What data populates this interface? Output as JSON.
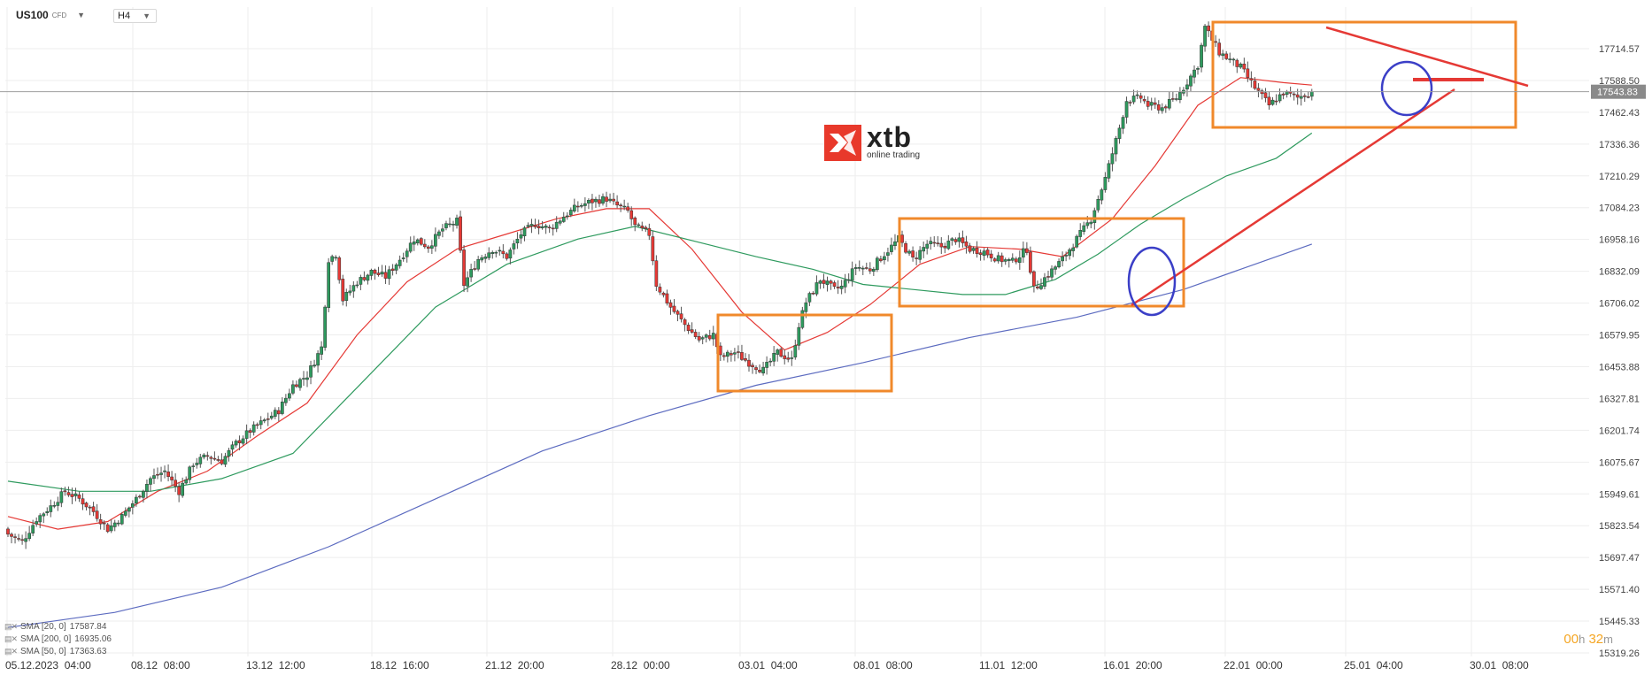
{
  "header": {
    "symbol": "US100",
    "symbol_type": "CFD",
    "timeframe": "H4"
  },
  "logo": {
    "brand": "xtb",
    "tagline": "online trading"
  },
  "countdown": {
    "hours": "00",
    "hours_unit": "h",
    "minutes": "32",
    "minutes_unit": "m"
  },
  "legend": [
    {
      "label": "SMA [20, 0]",
      "value": "17587.84",
      "color": "#e53935"
    },
    {
      "label": "SMA [200, 0]",
      "value": "16935.06",
      "color": "#5c6bc0"
    },
    {
      "label": "SMA [50, 0]",
      "value": "17363.63",
      "color": "#2e9a5e"
    }
  ],
  "chart_data": {
    "type": "candlestick",
    "symbol": "US100",
    "timeframe": "H4",
    "ylim": [
      15270,
      17900
    ],
    "x_tick_labels": [
      "05.12.2023  04:00",
      "08.12  08:00",
      "13.12  12:00",
      "18.12  16:00",
      "21.12  20:00",
      "28.12  00:00",
      "03.01  04:00",
      "08.01  08:00",
      "11.01  12:00",
      "16.01  20:00",
      "22.01  00:00",
      "25.01  04:00",
      "30.01  08:00"
    ],
    "y_tick_labels": [
      "17714.57",
      "17588.50",
      "17462.43",
      "17336.36",
      "17210.29",
      "17084.23",
      "16958.16",
      "16832.09",
      "16706.02",
      "16579.95",
      "16453.88",
      "16327.81",
      "16201.74",
      "16075.67",
      "15949.61",
      "15823.54",
      "15697.47",
      "15571.40",
      "15445.33",
      "15319.26"
    ],
    "current_price": {
      "label": "17543.83",
      "value": 17543.83
    },
    "close_path": [
      [
        0,
        15790
      ],
      [
        4,
        15760
      ],
      [
        8,
        15850
      ],
      [
        12,
        15900
      ],
      [
        16,
        15960
      ],
      [
        20,
        15930
      ],
      [
        24,
        15880
      ],
      [
        28,
        15810
      ],
      [
        32,
        15860
      ],
      [
        36,
        15930
      ],
      [
        40,
        16010
      ],
      [
        44,
        16040
      ],
      [
        48,
        15960
      ],
      [
        52,
        16070
      ],
      [
        56,
        16100
      ],
      [
        60,
        16080
      ],
      [
        64,
        16150
      ],
      [
        68,
        16200
      ],
      [
        72,
        16240
      ],
      [
        76,
        16280
      ],
      [
        80,
        16380
      ],
      [
        84,
        16420
      ],
      [
        88,
        16530
      ],
      [
        90,
        16880
      ],
      [
        92,
        16900
      ],
      [
        94,
        16720
      ],
      [
        98,
        16790
      ],
      [
        102,
        16830
      ],
      [
        106,
        16810
      ],
      [
        110,
        16880
      ],
      [
        114,
        16960
      ],
      [
        118,
        16930
      ],
      [
        122,
        17000
      ],
      [
        126,
        17030
      ],
      [
        128,
        16780
      ],
      [
        132,
        16880
      ],
      [
        136,
        16920
      ],
      [
        140,
        16890
      ],
      [
        144,
        16980
      ],
      [
        148,
        17020
      ],
      [
        152,
        17000
      ],
      [
        156,
        17050
      ],
      [
        160,
        17090
      ],
      [
        164,
        17110
      ],
      [
        168,
        17120
      ],
      [
        170,
        17100
      ],
      [
        174,
        17070
      ],
      [
        176,
        17010
      ],
      [
        180,
        16980
      ],
      [
        182,
        16780
      ],
      [
        186,
        16690
      ],
      [
        190,
        16620
      ],
      [
        194,
        16560
      ],
      [
        198,
        16580
      ],
      [
        200,
        16490
      ],
      [
        204,
        16510
      ],
      [
        208,
        16470
      ],
      [
        212,
        16440
      ],
      [
        216,
        16510
      ],
      [
        220,
        16480
      ],
      [
        222,
        16620
      ],
      [
        224,
        16710
      ],
      [
        228,
        16800
      ],
      [
        232,
        16760
      ],
      [
        234,
        16770
      ],
      [
        238,
        16850
      ],
      [
        242,
        16840
      ],
      [
        246,
        16900
      ],
      [
        250,
        16960
      ],
      [
        254,
        16880
      ],
      [
        258,
        16940
      ],
      [
        262,
        16930
      ],
      [
        266,
        16960
      ],
      [
        270,
        16920
      ],
      [
        274,
        16910
      ],
      [
        278,
        16880
      ],
      [
        282,
        16870
      ],
      [
        286,
        16920
      ],
      [
        288,
        16760
      ],
      [
        292,
        16820
      ],
      [
        296,
        16880
      ],
      [
        300,
        16960
      ],
      [
        304,
        17040
      ],
      [
        306,
        17120
      ],
      [
        308,
        17200
      ],
      [
        310,
        17300
      ],
      [
        312,
        17400
      ],
      [
        314,
        17510
      ],
      [
        318,
        17520
      ],
      [
        320,
        17490
      ],
      [
        324,
        17480
      ],
      [
        328,
        17520
      ],
      [
        330,
        17560
      ],
      [
        334,
        17650
      ],
      [
        336,
        17800
      ],
      [
        340,
        17700
      ],
      [
        342,
        17680
      ],
      [
        346,
        17640
      ],
      [
        350,
        17560
      ],
      [
        354,
        17490
      ],
      [
        358,
        17540
      ],
      [
        362,
        17520
      ],
      [
        366,
        17543.83
      ]
    ],
    "series": [
      {
        "name": "SMA [20, 0]",
        "color": "#e53935",
        "points": [
          [
            0,
            15860
          ],
          [
            14,
            15810
          ],
          [
            28,
            15840
          ],
          [
            42,
            15960
          ],
          [
            56,
            16040
          ],
          [
            70,
            16180
          ],
          [
            84,
            16310
          ],
          [
            98,
            16580
          ],
          [
            112,
            16790
          ],
          [
            126,
            16920
          ],
          [
            140,
            16980
          ],
          [
            154,
            17040
          ],
          [
            168,
            17080
          ],
          [
            180,
            17080
          ],
          [
            192,
            16920
          ],
          [
            206,
            16670
          ],
          [
            218,
            16520
          ],
          [
            230,
            16590
          ],
          [
            242,
            16700
          ],
          [
            256,
            16860
          ],
          [
            270,
            16930
          ],
          [
            284,
            16920
          ],
          [
            296,
            16890
          ],
          [
            310,
            17040
          ],
          [
            322,
            17250
          ],
          [
            334,
            17490
          ],
          [
            346,
            17600
          ],
          [
            358,
            17580
          ],
          [
            366,
            17570
          ]
        ]
      },
      {
        "name": "SMA [50, 0]",
        "color": "#2e9a5e",
        "points": [
          [
            0,
            16000
          ],
          [
            20,
            15960
          ],
          [
            40,
            15960
          ],
          [
            60,
            16010
          ],
          [
            80,
            16110
          ],
          [
            100,
            16400
          ],
          [
            120,
            16690
          ],
          [
            140,
            16860
          ],
          [
            160,
            16960
          ],
          [
            176,
            17010
          ],
          [
            196,
            16940
          ],
          [
            210,
            16890
          ],
          [
            226,
            16840
          ],
          [
            240,
            16780
          ],
          [
            254,
            16760
          ],
          [
            268,
            16740
          ],
          [
            280,
            16740
          ],
          [
            294,
            16800
          ],
          [
            306,
            16900
          ],
          [
            318,
            17020
          ],
          [
            330,
            17120
          ],
          [
            342,
            17210
          ],
          [
            356,
            17280
          ],
          [
            366,
            17380
          ]
        ]
      },
      {
        "name": "SMA [200, 0]",
        "color": "#5c6bc0",
        "points": [
          [
            0,
            15420
          ],
          [
            30,
            15480
          ],
          [
            60,
            15580
          ],
          [
            90,
            15740
          ],
          [
            120,
            15930
          ],
          [
            150,
            16120
          ],
          [
            180,
            16260
          ],
          [
            210,
            16380
          ],
          [
            240,
            16470
          ],
          [
            270,
            16570
          ],
          [
            300,
            16650
          ],
          [
            330,
            16760
          ],
          [
            350,
            16860
          ],
          [
            366,
            16940
          ]
        ]
      }
    ]
  }
}
